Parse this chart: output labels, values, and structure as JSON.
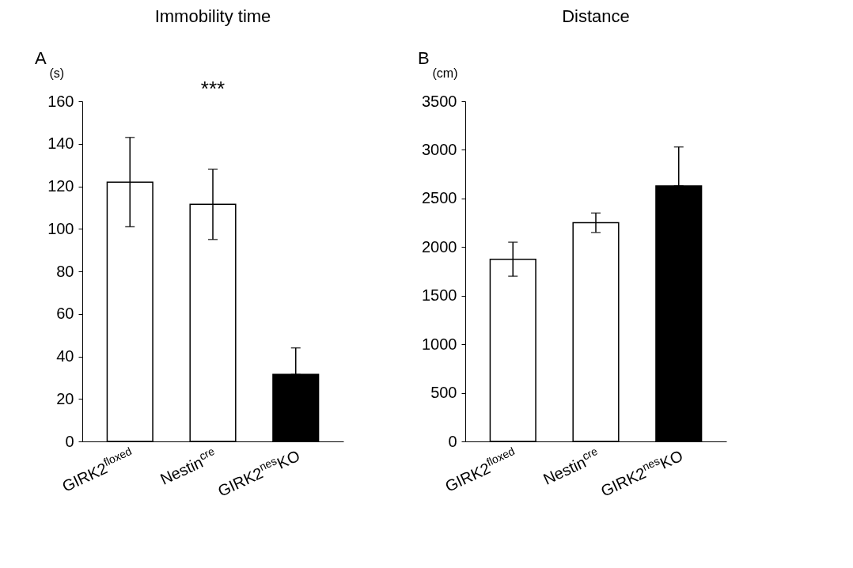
{
  "chart_data": [
    {
      "type": "bar",
      "title": "Immobility time",
      "ylabel": "(s)",
      "categories": [
        "GIRK2$^{floxed}$",
        "Nestin$^{cre}$",
        "GIRK2$^{nes}$KO"
      ],
      "values": [
        122,
        111.5,
        31.5
      ],
      "errors": [
        21,
        16.5,
        [
          31.5,
          44
        ]
      ],
      "colors": [
        "#ffffff",
        "#ffffff",
        "#000000"
      ],
      "ylim": [
        0,
        160
      ],
      "yticks": [
        0,
        20,
        40,
        60,
        80,
        100,
        120,
        140,
        160
      ],
      "grid": false,
      "annotations": [
        "A",
        "***"
      ]
    },
    {
      "type": "bar",
      "title": "Distance",
      "ylabel": "(cm)",
      "categories": [
        "GIRK2$^{floxed}$",
        "Nestin$^{cre}$",
        "GIRK2$^{nes}$KO"
      ],
      "values": [
        1875,
        2250,
        2630
      ],
      "errors": [
        175,
        100,
        [
          2630,
          3030
        ]
      ],
      "colors": [
        "#ffffff",
        "#ffffff",
        "#000000"
      ],
      "ylim": [
        0,
        3500
      ],
      "yticks": [
        0,
        500,
        1000,
        1500,
        2000,
        2500,
        3000,
        3500
      ],
      "grid": false,
      "annotations": [
        "B"
      ]
    }
  ]
}
